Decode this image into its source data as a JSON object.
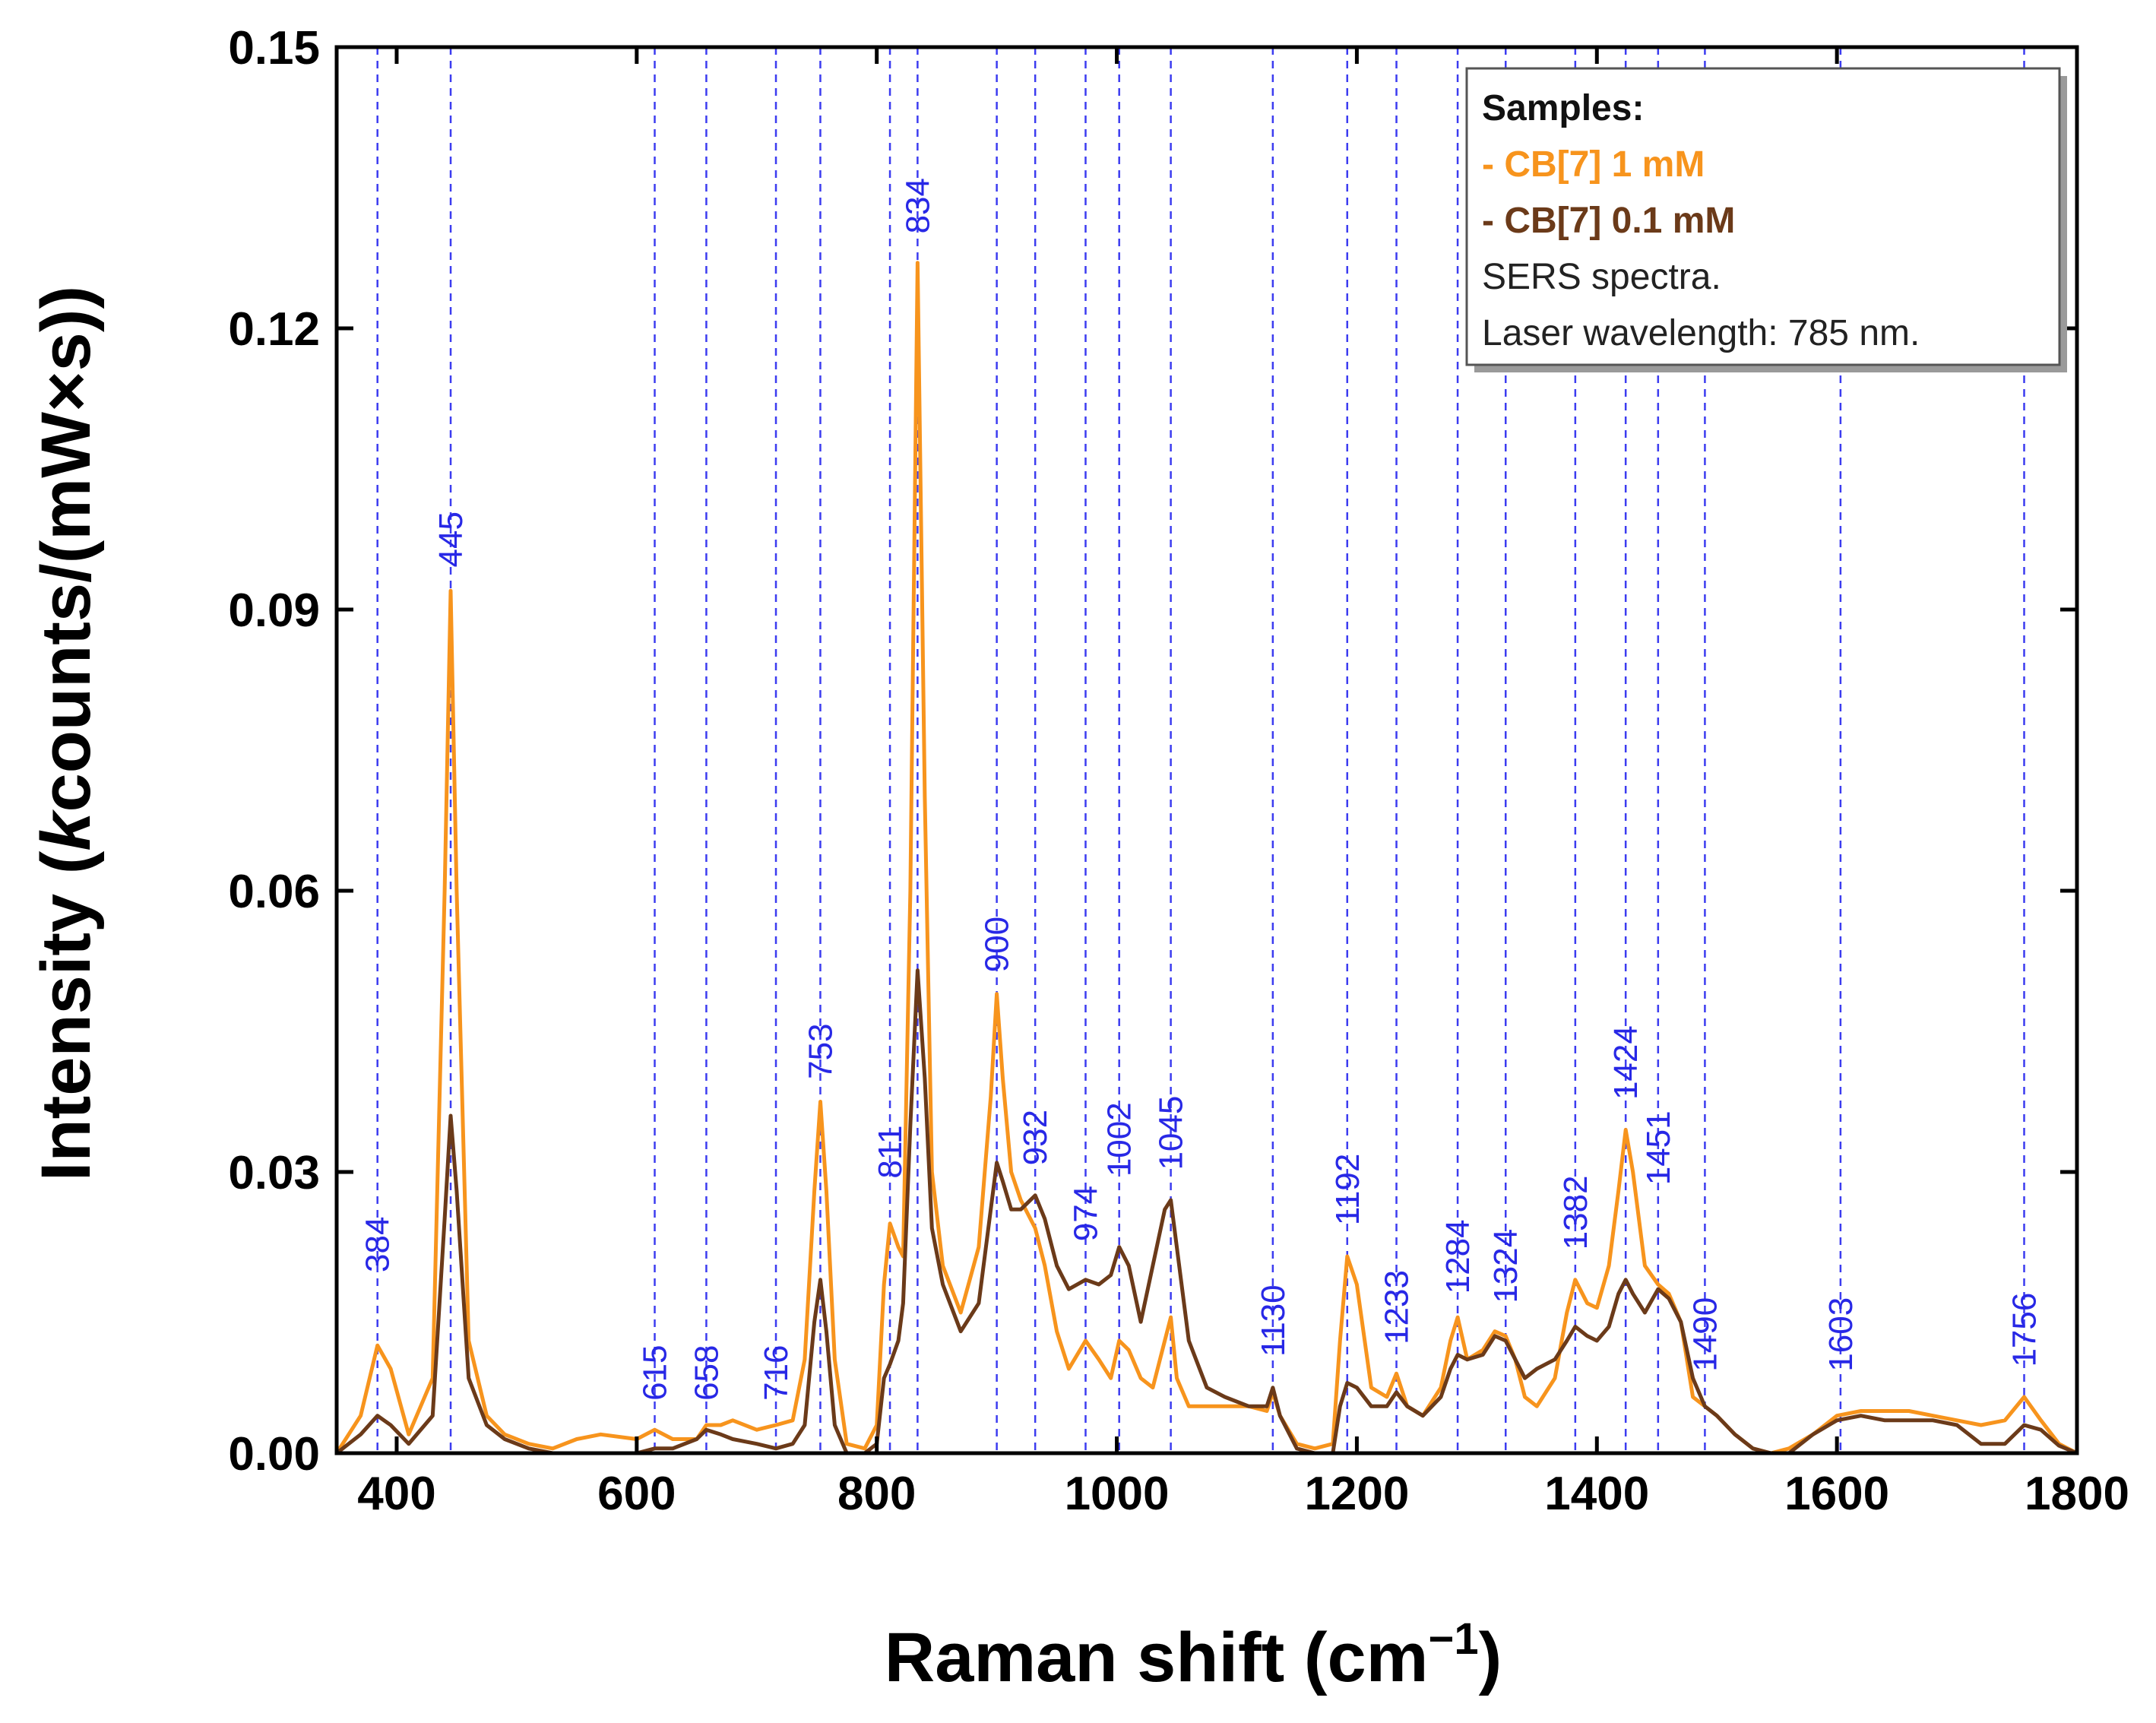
{
  "chart_data": {
    "type": "line",
    "title": "",
    "xlabel_main": "Raman shift (cm",
    "xlabel_sup": "−1",
    "xlabel_end": ")",
    "ylabel_pre": "Intensity (",
    "ylabel_italic": "k",
    "ylabel_post": "counts/(mW×s))",
    "xlim": [
      350,
      1800
    ],
    "ylim": [
      0,
      0.15
    ],
    "xticks": [
      "400",
      "600",
      "800",
      "1000",
      "1200",
      "1400",
      "1600",
      "1800"
    ],
    "xtick_values": [
      400,
      600,
      800,
      1000,
      1200,
      1400,
      1600,
      1800
    ],
    "yticks": [
      "0.00",
      "0.03",
      "0.06",
      "0.09",
      "0.12",
      "0.15"
    ],
    "ytick_values": [
      0,
      0.03,
      0.06,
      0.09,
      0.12,
      0.15
    ],
    "peak_lines": [
      384,
      445,
      615,
      658,
      716,
      753,
      811,
      834,
      900,
      932,
      974,
      1002,
      1045,
      1130,
      1192,
      1233,
      1284,
      1324,
      1382,
      1424,
      1451,
      1490,
      1603,
      1756
    ],
    "peak_labels": [
      {
        "text": "384",
        "x": 384,
        "y": 0.0193
      },
      {
        "text": "445",
        "x": 445,
        "y": 0.0945
      },
      {
        "text": "615",
        "x": 615,
        "y": 0.0056
      },
      {
        "text": "658",
        "x": 658,
        "y": 0.0056
      },
      {
        "text": "716",
        "x": 716,
        "y": 0.0056
      },
      {
        "text": "753",
        "x": 753,
        "y": 0.0399
      },
      {
        "text": "811",
        "x": 811,
        "y": 0.0293
      },
      {
        "text": "834",
        "x": 834,
        "y": 0.1301
      },
      {
        "text": "900",
        "x": 900,
        "y": 0.0513
      },
      {
        "text": "932",
        "x": 932,
        "y": 0.0307
      },
      {
        "text": "974",
        "x": 974,
        "y": 0.0226
      },
      {
        "text": "1002",
        "x": 1002,
        "y": 0.0295
      },
      {
        "text": "1045",
        "x": 1045,
        "y": 0.0302
      },
      {
        "text": "1130",
        "x": 1130,
        "y": 0.0103
      },
      {
        "text": "1192",
        "x": 1192,
        "y": 0.0243
      },
      {
        "text": "1233",
        "x": 1233,
        "y": 0.0116
      },
      {
        "text": "1284",
        "x": 1284,
        "y": 0.017
      },
      {
        "text": "1324",
        "x": 1324,
        "y": 0.016
      },
      {
        "text": "1382",
        "x": 1382,
        "y": 0.0217
      },
      {
        "text": "1424",
        "x": 1424,
        "y": 0.0377
      },
      {
        "text": "1451",
        "x": 1451,
        "y": 0.0286
      },
      {
        "text": "1490",
        "x": 1490,
        "y": 0.0087
      },
      {
        "text": "1603",
        "x": 1603,
        "y": 0.0087
      },
      {
        "text": "1756",
        "x": 1756,
        "y": 0.0092
      }
    ],
    "series": [
      {
        "name": "- CB[7] 1 mM",
        "color": "#f7941d",
        "x": [
          350,
          370,
          384,
          395,
          410,
          430,
          440,
          445,
          450,
          460,
          475,
          490,
          510,
          530,
          550,
          570,
          600,
          615,
          630,
          650,
          658,
          670,
          680,
          700,
          716,
          730,
          740,
          748,
          753,
          758,
          765,
          775,
          790,
          800,
          806,
          811,
          818,
          822,
          828,
          834,
          840,
          846,
          855,
          870,
          885,
          895,
          900,
          905,
          912,
          920,
          932,
          940,
          950,
          960,
          974,
          985,
          995,
          1002,
          1010,
          1020,
          1030,
          1040,
          1045,
          1050,
          1060,
          1075,
          1090,
          1110,
          1125,
          1130,
          1136,
          1150,
          1165,
          1180,
          1186,
          1192,
          1200,
          1212,
          1225,
          1233,
          1242,
          1255,
          1270,
          1278,
          1284,
          1292,
          1305,
          1315,
          1324,
          1332,
          1340,
          1350,
          1365,
          1375,
          1382,
          1392,
          1400,
          1410,
          1418,
          1424,
          1430,
          1440,
          1451,
          1460,
          1470,
          1480,
          1490,
          1500,
          1515,
          1530,
          1545,
          1560,
          1580,
          1600,
          1620,
          1640,
          1660,
          1680,
          1700,
          1720,
          1740,
          1756,
          1770,
          1785,
          1800
        ],
        "y": [
          0,
          0.004,
          0.0115,
          0.009,
          0.002,
          0.008,
          0.06,
          0.092,
          0.06,
          0.012,
          0.004,
          0.002,
          0.001,
          0.0005,
          0.0015,
          0.002,
          0.0015,
          0.0025,
          0.0015,
          0.0015,
          0.003,
          0.003,
          0.0035,
          0.0025,
          0.003,
          0.0035,
          0.01,
          0.028,
          0.0375,
          0.028,
          0.01,
          0.001,
          0.0005,
          0.003,
          0.018,
          0.0245,
          0.022,
          0.021,
          0.06,
          0.127,
          0.07,
          0.03,
          0.02,
          0.015,
          0.022,
          0.038,
          0.049,
          0.04,
          0.03,
          0.027,
          0.024,
          0.02,
          0.013,
          0.009,
          0.012,
          0.01,
          0.008,
          0.012,
          0.011,
          0.008,
          0.007,
          0.012,
          0.0145,
          0.008,
          0.005,
          0.005,
          0.005,
          0.005,
          0.0045,
          0.0065,
          0.004,
          0.001,
          0.0005,
          0.001,
          0.012,
          0.021,
          0.018,
          0.007,
          0.006,
          0.0085,
          0.005,
          0.004,
          0.007,
          0.012,
          0.0145,
          0.01,
          0.011,
          0.013,
          0.0125,
          0.01,
          0.006,
          0.005,
          0.008,
          0.015,
          0.0185,
          0.016,
          0.0155,
          0.02,
          0.028,
          0.0345,
          0.03,
          0.02,
          0.018,
          0.017,
          0.014,
          0.006,
          0.005,
          0.004,
          0.002,
          0.0005,
          0,
          0.0005,
          0.002,
          0.004,
          0.0045,
          0.0045,
          0.0045,
          0.004,
          0.0035,
          0.003,
          0.0035,
          0.006,
          0.0035,
          0.001,
          0
        ]
      },
      {
        "name": "- CB[7] 0.1 mM",
        "color": "#6b3a19",
        "x": [
          350,
          370,
          384,
          395,
          410,
          430,
          440,
          445,
          450,
          460,
          475,
          490,
          510,
          530,
          550,
          570,
          600,
          615,
          630,
          650,
          658,
          670,
          680,
          700,
          716,
          730,
          740,
          748,
          753,
          758,
          765,
          775,
          790,
          800,
          806,
          811,
          818,
          822,
          828,
          834,
          840,
          846,
          855,
          870,
          885,
          895,
          900,
          905,
          912,
          920,
          932,
          940,
          950,
          960,
          974,
          985,
          995,
          1002,
          1010,
          1020,
          1030,
          1040,
          1045,
          1050,
          1060,
          1075,
          1090,
          1110,
          1125,
          1130,
          1136,
          1150,
          1165,
          1180,
          1186,
          1192,
          1200,
          1212,
          1225,
          1233,
          1242,
          1255,
          1270,
          1278,
          1284,
          1292,
          1305,
          1315,
          1324,
          1332,
          1340,
          1350,
          1365,
          1375,
          1382,
          1392,
          1400,
          1410,
          1418,
          1424,
          1430,
          1440,
          1451,
          1460,
          1470,
          1480,
          1490,
          1500,
          1515,
          1530,
          1545,
          1560,
          1580,
          1600,
          1620,
          1640,
          1660,
          1680,
          1700,
          1720,
          1740,
          1756,
          1770,
          1785,
          1800
        ],
        "y": [
          0,
          0.002,
          0.004,
          0.003,
          0.001,
          0.004,
          0.025,
          0.036,
          0.028,
          0.008,
          0.003,
          0.0015,
          0.0005,
          0,
          0,
          0,
          0,
          0.0005,
          0.0005,
          0.0015,
          0.0025,
          0.002,
          0.0015,
          0.001,
          0.0005,
          0.001,
          0.003,
          0.014,
          0.0185,
          0.013,
          0.003,
          0,
          0,
          0.001,
          0.008,
          0.0095,
          0.012,
          0.016,
          0.035,
          0.0515,
          0.04,
          0.024,
          0.018,
          0.013,
          0.016,
          0.026,
          0.031,
          0.029,
          0.026,
          0.026,
          0.0275,
          0.025,
          0.02,
          0.0175,
          0.0185,
          0.018,
          0.019,
          0.022,
          0.02,
          0.014,
          0.02,
          0.026,
          0.027,
          0.022,
          0.012,
          0.007,
          0.006,
          0.005,
          0.005,
          0.007,
          0.004,
          0.0005,
          0,
          0,
          0.005,
          0.0075,
          0.007,
          0.005,
          0.005,
          0.0065,
          0.005,
          0.004,
          0.006,
          0.009,
          0.0105,
          0.01,
          0.0105,
          0.0125,
          0.012,
          0.01,
          0.008,
          0.009,
          0.01,
          0.012,
          0.0135,
          0.0125,
          0.012,
          0.0135,
          0.017,
          0.0185,
          0.017,
          0.015,
          0.0175,
          0.0165,
          0.014,
          0.008,
          0.005,
          0.004,
          0.002,
          0.0005,
          0,
          0,
          0.002,
          0.0035,
          0.004,
          0.0035,
          0.0035,
          0.0035,
          0.003,
          0.001,
          0.001,
          0.003,
          0.0025,
          0.0008,
          0
        ]
      }
    ],
    "legend": {
      "title": "Samples:",
      "entries": [
        "- CB[7] 1 mM",
        "- CB[7] 0.1 mM"
      ],
      "notes": [
        "SERS spectra.",
        "Laser wavelength: 785 nm."
      ],
      "placement": "top-right"
    }
  }
}
